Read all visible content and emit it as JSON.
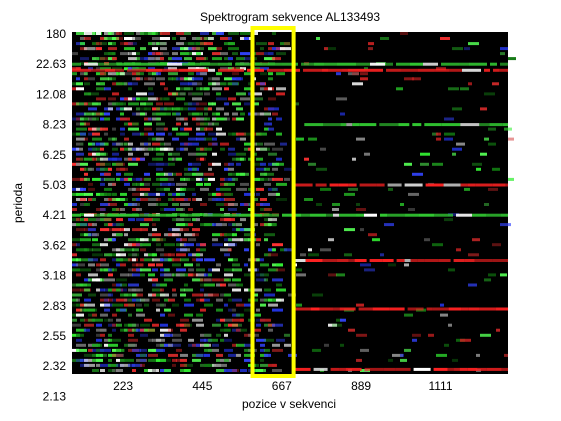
{
  "chart_data": {
    "type": "heatmap",
    "title": "Spektrogram sekvence AL133493",
    "xlabel": "pozice v sekvenci",
    "ylabel": "perioda",
    "x_ticks": [
      223,
      445,
      667,
      889,
      1111
    ],
    "xlim": [
      80,
      1300
    ],
    "y_ticks": [
      "180",
      "22.63",
      "12.08",
      "8.23",
      "6.25",
      "5.03",
      "4.21",
      "3.62",
      "3.18",
      "2.83",
      "2.55",
      "2.32",
      "2.13"
    ],
    "y_tick_values": [
      180,
      22.63,
      12.08,
      8.23,
      6.25,
      5.03,
      4.21,
      3.62,
      3.18,
      2.83,
      2.55,
      2.32,
      2.13
    ],
    "channels": [
      "red",
      "green",
      "blue"
    ],
    "highlight": {
      "x_range": [
        585,
        700
      ],
      "color": "#ffff00"
    },
    "bands": [
      {
        "period": 22.63,
        "x_range": [
          80,
          1300
        ],
        "color": "#33cc33"
      },
      {
        "period": 20.5,
        "x_range": [
          80,
          1300
        ],
        "color": "#ff2222"
      },
      {
        "period": 8.23,
        "x_range": [
          730,
          1300
        ],
        "color": "#33cc33"
      },
      {
        "period": 5.03,
        "x_range": [
          700,
          1300
        ],
        "color": "#ff2222"
      },
      {
        "period": 4.21,
        "x_range": [
          80,
          1300
        ],
        "color": "#33cc33"
      },
      {
        "period": 3.4,
        "x_range": [
          700,
          1300
        ],
        "color": "#ff2222"
      },
      {
        "period": 2.8,
        "x_range": [
          700,
          1300
        ],
        "color": "#ff2222"
      },
      {
        "period": 2.3,
        "x_range": [
          700,
          1300
        ],
        "color": "#ff2222"
      }
    ],
    "grid": false,
    "colors": {
      "background": "#000000",
      "highlight": "#ffff00"
    }
  }
}
